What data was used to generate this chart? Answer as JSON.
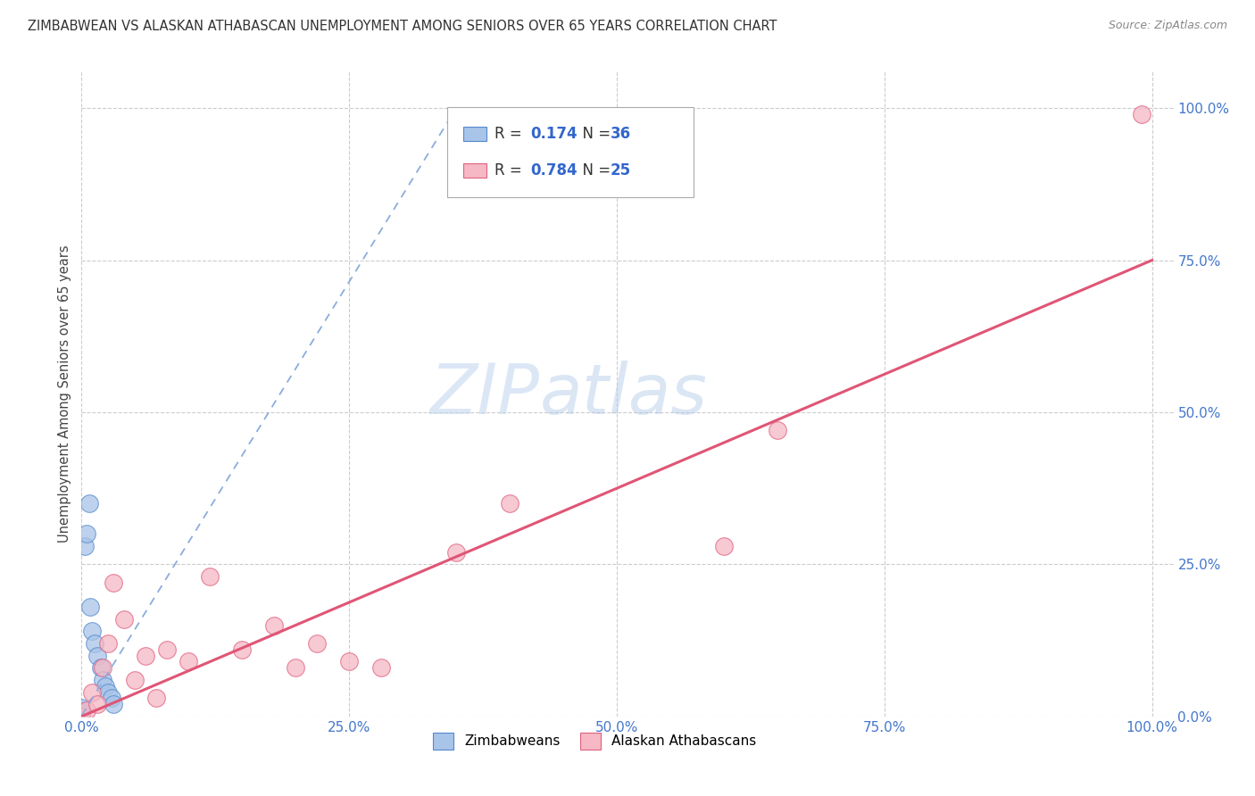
{
  "title": "ZIMBABWEAN VS ALASKAN ATHABASCAN UNEMPLOYMENT AMONG SENIORS OVER 65 YEARS CORRELATION CHART",
  "source": "Source: ZipAtlas.com",
  "ylabel": "Unemployment Among Seniors over 65 years",
  "watermark_zip": "ZIP",
  "watermark_atlas": "atlas",
  "legend_label1": "Zimbabweans",
  "legend_label2": "Alaskan Athabascans",
  "R1": "0.174",
  "N1": "36",
  "R2": "0.784",
  "N2": "25",
  "blue_fill": "#a8c4e8",
  "blue_edge": "#5588cc",
  "pink_fill": "#f5b8c4",
  "pink_edge": "#e06080",
  "blue_line_color": "#8aaddd",
  "pink_line_color": "#e05575",
  "tick_color": "#4477cc",
  "title_color": "#333333",
  "source_color": "#888888",
  "ylabel_color": "#444444",
  "grid_color": "#cccccc",
  "legend_text_color": "#333333",
  "legend_r_color": "#3366cc",
  "background": "#ffffff",
  "zim_x": [
    0.0,
    0.0,
    0.0,
    0.0,
    0.0,
    0.0,
    0.0,
    0.0,
    0.0,
    0.0,
    0.0,
    0.0,
    0.0,
    0.0,
    0.0,
    0.0,
    0.0,
    0.0,
    0.0,
    0.0,
    0.0,
    0.0,
    0.0,
    0.003,
    0.005,
    0.007,
    0.008,
    0.01,
    0.012,
    0.015,
    0.018,
    0.02,
    0.022,
    0.025,
    0.028,
    0.03
  ],
  "zim_y": [
    0.0,
    0.0,
    0.0,
    0.0,
    0.0,
    0.0,
    0.0,
    0.0,
    0.0,
    0.0,
    0.0,
    0.0,
    0.0,
    0.0,
    0.0,
    0.001,
    0.001,
    0.002,
    0.003,
    0.005,
    0.007,
    0.01,
    0.015,
    0.28,
    0.3,
    0.35,
    0.18,
    0.14,
    0.12,
    0.1,
    0.08,
    0.06,
    0.05,
    0.04,
    0.03,
    0.02
  ],
  "ath_x": [
    0.0,
    0.005,
    0.01,
    0.015,
    0.02,
    0.025,
    0.03,
    0.04,
    0.05,
    0.06,
    0.07,
    0.08,
    0.1,
    0.12,
    0.15,
    0.18,
    0.2,
    0.22,
    0.25,
    0.28,
    0.35,
    0.4,
    0.6,
    0.65,
    0.99
  ],
  "ath_y": [
    0.0,
    0.01,
    0.04,
    0.02,
    0.08,
    0.12,
    0.22,
    0.16,
    0.06,
    0.1,
    0.03,
    0.11,
    0.09,
    0.23,
    0.11,
    0.15,
    0.08,
    0.12,
    0.09,
    0.08,
    0.27,
    0.35,
    0.28,
    0.47,
    0.99
  ],
  "blue_line": [
    0.0,
    0.001,
    0.35,
    1.0
  ],
  "pink_line": [
    0.0,
    0.0,
    1.0,
    0.75
  ],
  "xlim": [
    0.0,
    1.02
  ],
  "ylim": [
    0.0,
    1.06
  ],
  "xticks": [
    0.0,
    0.25,
    0.5,
    0.75,
    1.0
  ],
  "yticks": [
    0.0,
    0.25,
    0.5,
    0.75,
    1.0
  ],
  "xticklabels": [
    "0.0%",
    "25.0%",
    "50.0%",
    "75.0%",
    "100.0%"
  ],
  "yticklabels": [
    "0.0%",
    "25.0%",
    "50.0%",
    "75.0%",
    "100.0%"
  ]
}
